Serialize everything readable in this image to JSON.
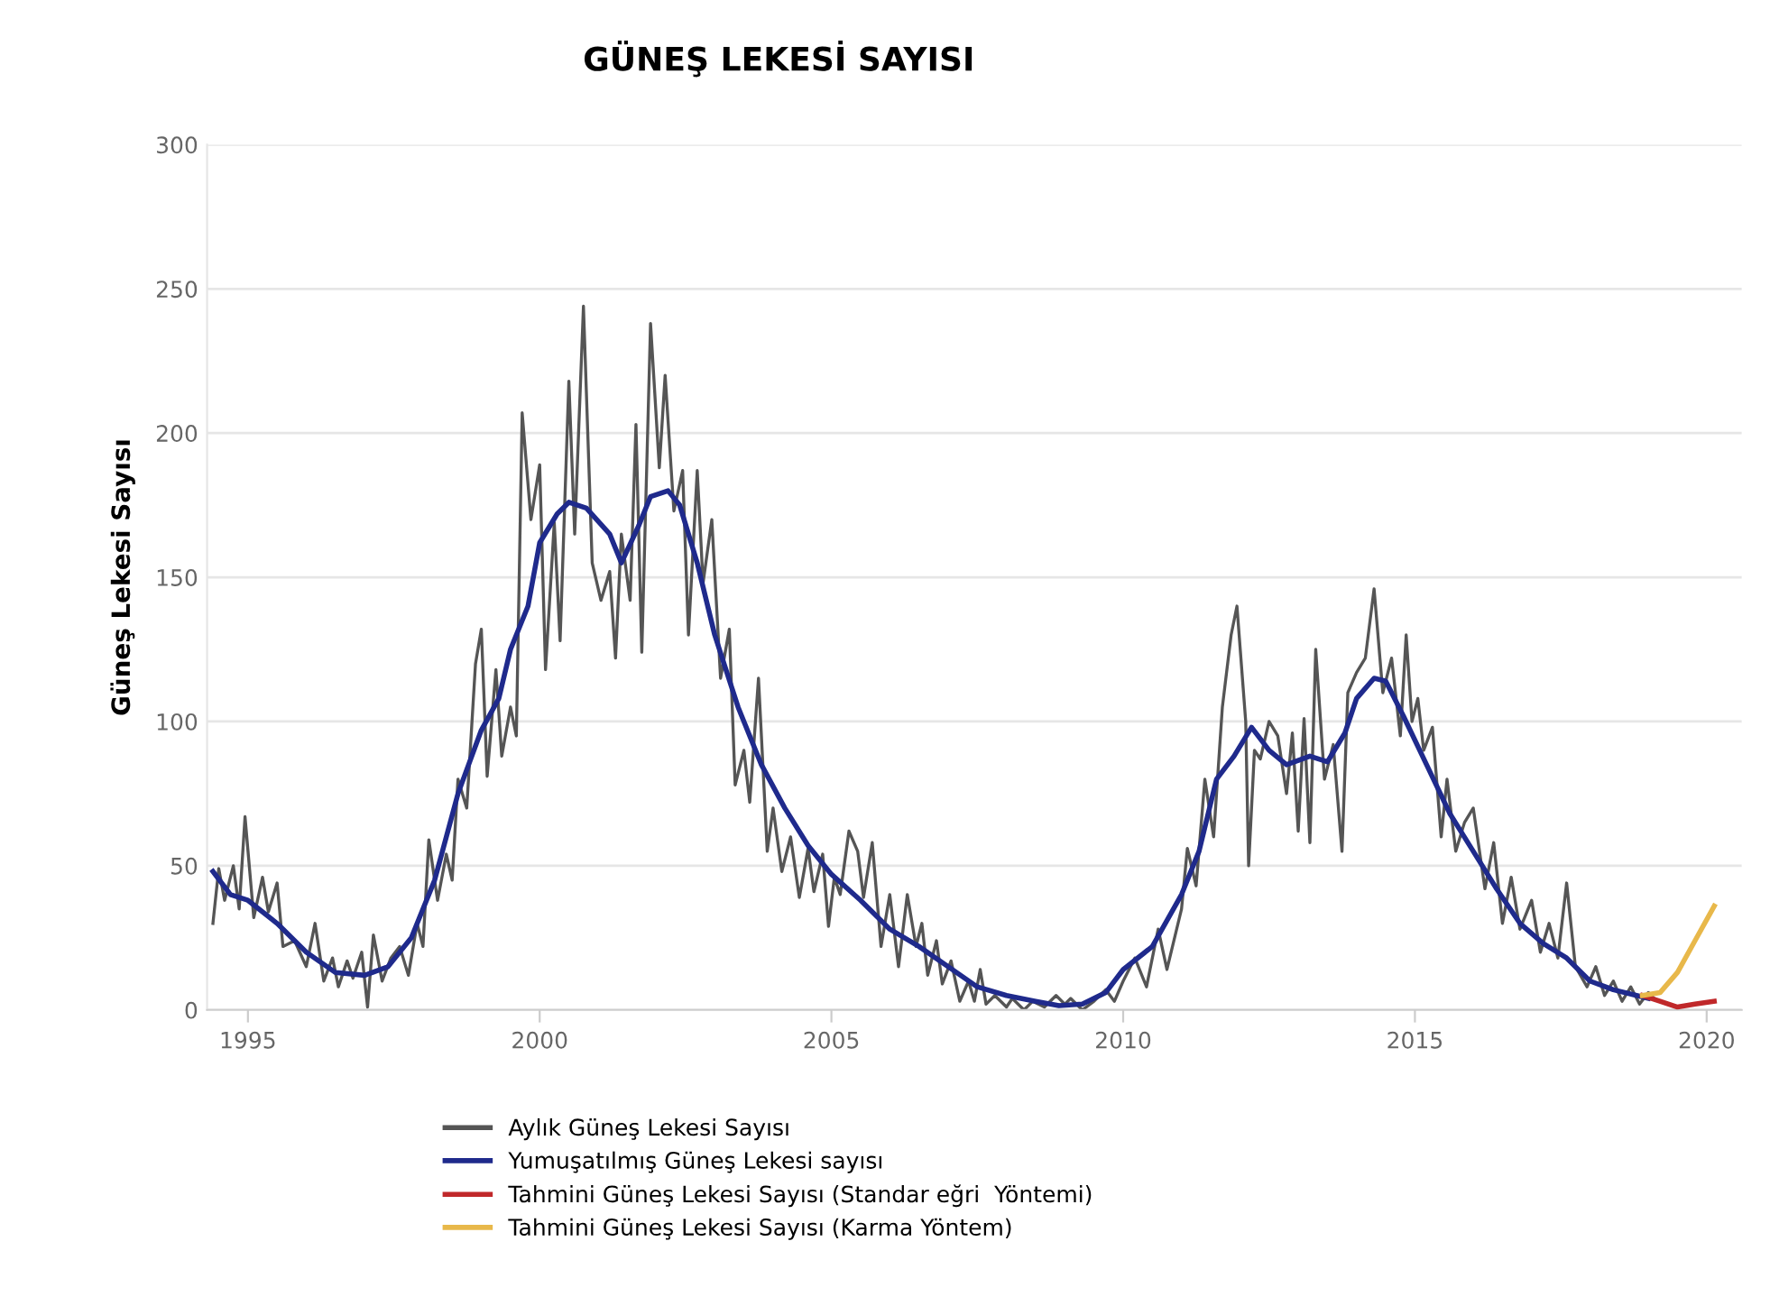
{
  "chart_data": {
    "type": "line",
    "title": "GÜNEŞ LEKESİ SAYISI",
    "ylabel": "Güneş Lekesi Sayısı",
    "xlim": [
      1994.3,
      2020.6
    ],
    "xticks": [
      1995,
      2000,
      2005,
      2010,
      2015,
      2020
    ],
    "ylim": [
      0,
      300
    ],
    "yticks": [
      0,
      50,
      100,
      150,
      200,
      250,
      300
    ],
    "grid": "y",
    "legend": "bottom",
    "line_style": "solid",
    "series": [
      {
        "name": "Aylık Güneş Lekesi Sayısı",
        "color": "#555555",
        "x": [
          1994.4,
          1994.5,
          1994.6,
          1994.75,
          1994.85,
          1994.95,
          1995.1,
          1995.25,
          1995.35,
          1995.5,
          1995.6,
          1995.8,
          1996.0,
          1996.15,
          1996.3,
          1996.45,
          1996.55,
          1996.7,
          1996.8,
          1996.95,
          1997.05,
          1997.15,
          1997.3,
          1997.45,
          1997.6,
          1997.75,
          1997.9,
          1998.0,
          1998.1,
          1998.25,
          1998.4,
          1998.5,
          1998.6,
          1998.75,
          1998.9,
          1999.0,
          1999.1,
          1999.25,
          1999.35,
          1999.5,
          1999.6,
          1999.7,
          1999.85,
          2000.0,
          2000.1,
          2000.25,
          2000.35,
          2000.5,
          2000.6,
          2000.75,
          2000.9,
          2001.05,
          2001.2,
          2001.3,
          2001.4,
          2001.55,
          2001.65,
          2001.75,
          2001.9,
          2002.05,
          2002.15,
          2002.3,
          2002.45,
          2002.55,
          2002.7,
          2002.8,
          2002.95,
          2003.1,
          2003.25,
          2003.35,
          2003.5,
          2003.6,
          2003.75,
          2003.9,
          2004.0,
          2004.15,
          2004.3,
          2004.45,
          2004.6,
          2004.7,
          2004.85,
          2004.95,
          2005.05,
          2005.15,
          2005.3,
          2005.45,
          2005.55,
          2005.7,
          2005.85,
          2006.0,
          2006.15,
          2006.3,
          2006.45,
          2006.55,
          2006.65,
          2006.8,
          2006.9,
          2007.05,
          2007.2,
          2007.35,
          2007.45,
          2007.55,
          2007.65,
          2007.8,
          2008.0,
          2008.1,
          2008.3,
          2008.45,
          2008.65,
          2008.85,
          2009.0,
          2009.1,
          2009.3,
          2009.5,
          2009.7,
          2009.85,
          2010.0,
          2010.2,
          2010.4,
          2010.6,
          2010.75,
          2011.0,
          2011.1,
          2011.25,
          2011.4,
          2011.55,
          2011.7,
          2011.85,
          2011.95,
          2012.1,
          2012.15,
          2012.25,
          2012.35,
          2012.5,
          2012.65,
          2012.8,
          2012.9,
          2013.0,
          2013.1,
          2013.2,
          2013.3,
          2013.45,
          2013.6,
          2013.75,
          2013.85,
          2014.0,
          2014.15,
          2014.3,
          2014.45,
          2014.6,
          2014.75,
          2014.85,
          2014.95,
          2015.05,
          2015.15,
          2015.3,
          2015.45,
          2015.55,
          2015.7,
          2015.85,
          2016.0,
          2016.2,
          2016.35,
          2016.5,
          2016.65,
          2016.8,
          2017.0,
          2017.15,
          2017.3,
          2017.45,
          2017.6,
          2017.75,
          2017.95,
          2018.1,
          2018.25,
          2018.4,
          2018.55,
          2018.7,
          2018.85,
          2019.0,
          2019.1
        ],
        "values": [
          30,
          49,
          38,
          50,
          35,
          67,
          32,
          46,
          34,
          44,
          22,
          24,
          15,
          30,
          10,
          18,
          8,
          17,
          11,
          20,
          1,
          26,
          10,
          18,
          22,
          12,
          30,
          22,
          59,
          38,
          54,
          45,
          80,
          70,
          120,
          132,
          81,
          118,
          88,
          105,
          95,
          207,
          170,
          189,
          118,
          169,
          128,
          218,
          165,
          244,
          155,
          142,
          152,
          122,
          165,
          142,
          203,
          124,
          238,
          188,
          220,
          173,
          187,
          130,
          187,
          148,
          170,
          115,
          132,
          78,
          90,
          72,
          115,
          55,
          70,
          48,
          60,
          39,
          56,
          41,
          54,
          29,
          46,
          40,
          62,
          55,
          39,
          58,
          22,
          40,
          15,
          40,
          22,
          30,
          12,
          24,
          9,
          17,
          3,
          10,
          3,
          14,
          2,
          5,
          1,
          4,
          0,
          3,
          1,
          5,
          2,
          4,
          0,
          3,
          7,
          3,
          10,
          18,
          8,
          28,
          14,
          35,
          56,
          43,
          80,
          60,
          105,
          130,
          140,
          100,
          50,
          90,
          87,
          100,
          95,
          75,
          96,
          62,
          101,
          58,
          125,
          80,
          92,
          55,
          110,
          117,
          122,
          146,
          110,
          122,
          95,
          130,
          100,
          108,
          90,
          98,
          60,
          80,
          55,
          65,
          70,
          42,
          58,
          30,
          46,
          28,
          38,
          20,
          30,
          18,
          44,
          15,
          8,
          15,
          5,
          10,
          3,
          8,
          2,
          6,
          4
        ]
      },
      {
        "name": "Yumuşatılmış Güneş Lekesi sayısı",
        "color": "#1f2a8c",
        "x": [
          1994.4,
          1994.7,
          1995.0,
          1995.5,
          1996.0,
          1996.5,
          1997.0,
          1997.4,
          1997.8,
          1998.2,
          1998.6,
          1999.0,
          1999.3,
          1999.5,
          1999.8,
          2000.0,
          2000.3,
          2000.5,
          2000.8,
          2001.2,
          2001.4,
          2001.7,
          2001.9,
          2002.2,
          2002.4,
          2002.7,
          2003.0,
          2003.4,
          2003.8,
          2004.2,
          2004.6,
          2005.0,
          2005.5,
          2006.0,
          2006.5,
          2007.0,
          2007.5,
          2008.0,
          2008.5,
          2008.9,
          2009.3,
          2009.7,
          2010.0,
          2010.5,
          2011.0,
          2011.3,
          2011.6,
          2011.9,
          2012.2,
          2012.5,
          2012.8,
          2013.2,
          2013.5,
          2013.8,
          2014.0,
          2014.3,
          2014.5,
          2014.8,
          2015.2,
          2015.6,
          2016.0,
          2016.4,
          2016.8,
          2017.2,
          2017.6,
          2018.0,
          2018.4,
          2018.8,
          2019.0
        ],
        "values": [
          48,
          40,
          38,
          30,
          20,
          13,
          12,
          15,
          25,
          45,
          75,
          97,
          108,
          125,
          140,
          162,
          172,
          176,
          174,
          165,
          155,
          168,
          178,
          180,
          175,
          155,
          130,
          105,
          85,
          70,
          57,
          47,
          38,
          28,
          22,
          15,
          8,
          5,
          3,
          1.5,
          2,
          6,
          14,
          22,
          40,
          55,
          80,
          88,
          98,
          90,
          85,
          88,
          86,
          96,
          108,
          115,
          114,
          102,
          85,
          68,
          55,
          42,
          30,
          23,
          18,
          10,
          7,
          5,
          4
        ]
      },
      {
        "name": "Tahmini Güneş Lekesi Sayısı (Standar eğri  Yöntemi)",
        "color": "#c0282a",
        "x": [
          2018.9,
          2019.2,
          2019.5,
          2019.8,
          2020.13
        ],
        "values": [
          5,
          3,
          1,
          2,
          3
        ]
      },
      {
        "name": "Tahmini Güneş Lekesi Sayısı (Karma Yöntem)",
        "color": "#e8b84a",
        "x": [
          2018.9,
          2019.2,
          2019.5,
          2019.8,
          2020.13
        ],
        "values": [
          5,
          6,
          13,
          24,
          36
        ]
      }
    ]
  }
}
